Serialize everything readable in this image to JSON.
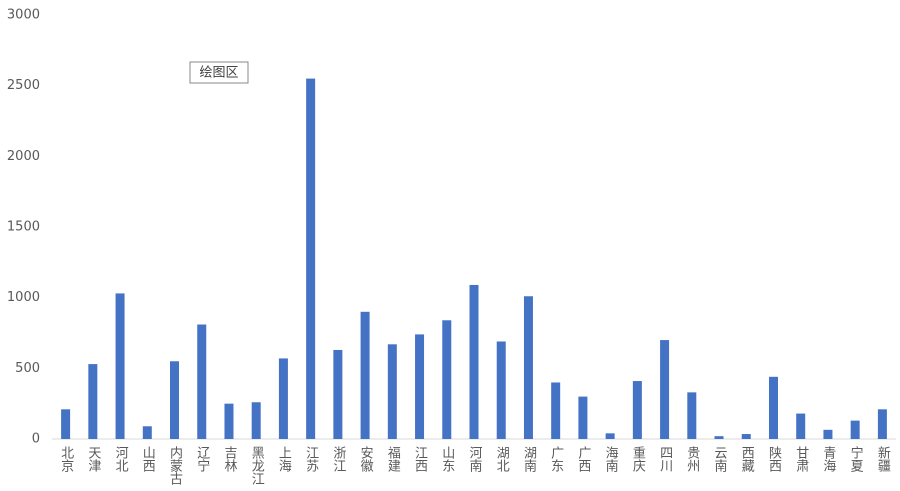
{
  "chart_data": {
    "type": "bar",
    "categories": [
      "北京",
      "天津",
      "河北",
      "山西",
      "内蒙古",
      "辽宁",
      "吉林",
      "黑龙江",
      "上海",
      "江苏",
      "浙江",
      "安徽",
      "福建",
      "江西",
      "山东",
      "河南",
      "湖北",
      "湖南",
      "广东",
      "广西",
      "海南",
      "重庆",
      "四川",
      "贵州",
      "云南",
      "西藏",
      "陕西",
      "甘肃",
      "青海",
      "宁夏",
      "新疆"
    ],
    "values": [
      210,
      530,
      1030,
      90,
      550,
      810,
      250,
      260,
      570,
      2550,
      630,
      900,
      670,
      740,
      840,
      1090,
      690,
      1010,
      400,
      300,
      40,
      410,
      700,
      330,
      20,
      35,
      440,
      180,
      65,
      130,
      210
    ],
    "color": "#4472c4",
    "ylim": [
      0,
      3000
    ],
    "yticks": [
      0,
      500,
      1000,
      1500,
      2000,
      2500,
      3000
    ],
    "grid": false,
    "tooltip": "绘图区"
  }
}
